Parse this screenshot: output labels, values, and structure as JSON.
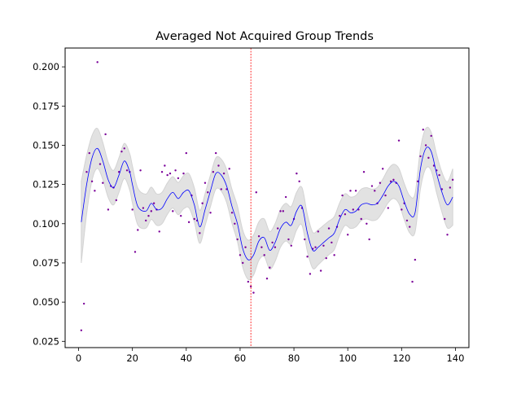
{
  "colors": {
    "line": "#0000ff",
    "points": "#7a0099",
    "band": "#d3d3d3",
    "vline": "#ff0000"
  },
  "chart_data": {
    "type": "scatter",
    "title": "Averaged Not Acquired Group Trends",
    "xlabel": "",
    "ylabel": "",
    "xlim": [
      -5,
      145
    ],
    "ylim": [
      0.021,
      0.212
    ],
    "xticks": [
      0,
      20,
      40,
      60,
      80,
      100,
      120,
      140
    ],
    "xtick_labels": [
      "0",
      "20",
      "40",
      "60",
      "80",
      "100",
      "120",
      "140"
    ],
    "yticks": [
      0.025,
      0.05,
      0.075,
      0.1,
      0.125,
      0.15,
      0.175,
      0.2
    ],
    "ytick_labels": [
      "0.025",
      "0.050",
      "0.075",
      "0.100",
      "0.125",
      "0.150",
      "0.175",
      "0.200"
    ],
    "grid": false,
    "legend": "none",
    "vertical_line_x": 64,
    "points": [
      [
        1,
        0.032
      ],
      [
        2,
        0.049
      ],
      [
        3,
        0.133
      ],
      [
        4,
        0.145
      ],
      [
        5,
        0.127
      ],
      [
        6,
        0.121
      ],
      [
        7,
        0.203
      ],
      [
        8,
        0.138
      ],
      [
        9,
        0.126
      ],
      [
        10,
        0.157
      ],
      [
        11,
        0.109
      ],
      [
        12,
        0.124
      ],
      [
        13,
        0.123
      ],
      [
        14,
        0.115
      ],
      [
        15,
        0.133
      ],
      [
        16,
        0.146
      ],
      [
        17,
        0.148
      ],
      [
        18,
        0.134
      ],
      [
        19,
        0.133
      ],
      [
        20,
        0.109
      ],
      [
        21,
        0.082
      ],
      [
        22,
        0.096
      ],
      [
        23,
        0.134
      ],
      [
        24,
        0.11
      ],
      [
        25,
        0.102
      ],
      [
        26,
        0.105
      ],
      [
        27,
        0.108
      ],
      [
        28,
        0.113
      ],
      [
        29,
        0.109
      ],
      [
        30,
        0.095
      ],
      [
        31,
        0.133
      ],
      [
        32,
        0.137
      ],
      [
        33,
        0.131
      ],
      [
        34,
        0.132
      ],
      [
        35,
        0.108
      ],
      [
        36,
        0.134
      ],
      [
        37,
        0.129
      ],
      [
        38,
        0.105
      ],
      [
        39,
        0.132
      ],
      [
        40,
        0.145
      ],
      [
        41,
        0.101
      ],
      [
        42,
        0.118
      ],
      [
        43,
        0.103
      ],
      [
        44,
        0.102
      ],
      [
        45,
        0.094
      ],
      [
        46,
        0.113
      ],
      [
        47,
        0.126
      ],
      [
        48,
        0.12
      ],
      [
        49,
        0.107
      ],
      [
        50,
        0.133
      ],
      [
        51,
        0.145
      ],
      [
        52,
        0.137
      ],
      [
        53,
        0.122
      ],
      [
        54,
        0.132
      ],
      [
        55,
        0.122
      ],
      [
        56,
        0.135
      ],
      [
        57,
        0.107
      ],
      [
        58,
        0.1
      ],
      [
        59,
        0.09
      ],
      [
        60,
        0.08
      ],
      [
        61,
        0.075
      ],
      [
        62,
        0.085
      ],
      [
        63,
        0.063
      ],
      [
        64,
        0.06
      ],
      [
        65,
        0.056
      ],
      [
        66,
        0.12
      ],
      [
        67,
        0.092
      ],
      [
        68,
        0.085
      ],
      [
        69,
        0.08
      ],
      [
        70,
        0.065
      ],
      [
        71,
        0.072
      ],
      [
        72,
        0.088
      ],
      [
        73,
        0.085
      ],
      [
        74,
        0.097
      ],
      [
        75,
        0.108
      ],
      [
        76,
        0.108
      ],
      [
        77,
        0.117
      ],
      [
        78,
        0.09
      ],
      [
        79,
        0.086
      ],
      [
        80,
        0.103
      ],
      [
        81,
        0.132
      ],
      [
        82,
        0.127
      ],
      [
        83,
        0.11
      ],
      [
        84,
        0.09
      ],
      [
        85,
        0.079
      ],
      [
        86,
        0.068
      ],
      [
        87,
        0.084
      ],
      [
        88,
        0.085
      ],
      [
        89,
        0.095
      ],
      [
        90,
        0.07
      ],
      [
        91,
        0.086
      ],
      [
        92,
        0.078
      ],
      [
        93,
        0.097
      ],
      [
        94,
        0.088
      ],
      [
        95,
        0.08
      ],
      [
        96,
        0.098
      ],
      [
        97,
        0.105
      ],
      [
        98,
        0.118
      ],
      [
        99,
        0.106
      ],
      [
        100,
        0.093
      ],
      [
        101,
        0.121
      ],
      [
        102,
        0.109
      ],
      [
        103,
        0.121
      ],
      [
        104,
        0.109
      ],
      [
        105,
        0.103
      ],
      [
        106,
        0.133
      ],
      [
        107,
        0.1
      ],
      [
        108,
        0.09
      ],
      [
        109,
        0.124
      ],
      [
        110,
        0.121
      ],
      [
        111,
        0.113
      ],
      [
        112,
        0.126
      ],
      [
        113,
        0.135
      ],
      [
        114,
        0.118
      ],
      [
        115,
        0.11
      ],
      [
        116,
        0.127
      ],
      [
        117,
        0.128
      ],
      [
        118,
        0.126
      ],
      [
        119,
        0.153
      ],
      [
        120,
        0.109
      ],
      [
        121,
        0.113
      ],
      [
        122,
        0.102
      ],
      [
        123,
        0.098
      ],
      [
        124,
        0.063
      ],
      [
        125,
        0.077
      ],
      [
        126,
        0.127
      ],
      [
        127,
        0.143
      ],
      [
        128,
        0.16
      ],
      [
        129,
        0.15
      ],
      [
        130,
        0.142
      ],
      [
        131,
        0.156
      ],
      [
        132,
        0.137
      ],
      [
        133,
        0.134
      ],
      [
        134,
        0.131
      ],
      [
        135,
        0.122
      ],
      [
        136,
        0.103
      ],
      [
        137,
        0.093
      ],
      [
        138,
        0.123
      ],
      [
        139,
        0.128
      ]
    ],
    "smooth_line": [
      [
        1,
        0.101
      ],
      [
        3,
        0.125
      ],
      [
        5,
        0.142
      ],
      [
        7,
        0.148
      ],
      [
        9,
        0.14
      ],
      [
        11,
        0.128
      ],
      [
        13,
        0.123
      ],
      [
        15,
        0.131
      ],
      [
        17,
        0.14
      ],
      [
        19,
        0.133
      ],
      [
        20,
        0.125
      ],
      [
        22,
        0.111
      ],
      [
        25,
        0.108
      ],
      [
        27,
        0.113
      ],
      [
        29,
        0.109
      ],
      [
        31,
        0.11
      ],
      [
        33,
        0.116
      ],
      [
        35,
        0.12
      ],
      [
        37,
        0.116
      ],
      [
        39,
        0.12
      ],
      [
        41,
        0.121
      ],
      [
        43,
        0.112
      ],
      [
        45,
        0.098
      ],
      [
        47,
        0.109
      ],
      [
        49,
        0.121
      ],
      [
        51,
        0.132
      ],
      [
        53,
        0.131
      ],
      [
        55,
        0.124
      ],
      [
        57,
        0.111
      ],
      [
        59,
        0.1
      ],
      [
        61,
        0.084
      ],
      [
        63,
        0.077
      ],
      [
        65,
        0.08
      ],
      [
        67,
        0.089
      ],
      [
        69,
        0.091
      ],
      [
        71,
        0.083
      ],
      [
        73,
        0.088
      ],
      [
        75,
        0.097
      ],
      [
        77,
        0.101
      ],
      [
        79,
        0.099
      ],
      [
        81,
        0.108
      ],
      [
        83,
        0.111
      ],
      [
        85,
        0.094
      ],
      [
        87,
        0.083
      ],
      [
        89,
        0.085
      ],
      [
        91,
        0.088
      ],
      [
        93,
        0.091
      ],
      [
        95,
        0.094
      ],
      [
        97,
        0.103
      ],
      [
        99,
        0.109
      ],
      [
        101,
        0.107
      ],
      [
        103,
        0.108
      ],
      [
        105,
        0.112
      ],
      [
        107,
        0.113
      ],
      [
        109,
        0.112
      ],
      [
        111,
        0.113
      ],
      [
        113,
        0.118
      ],
      [
        115,
        0.124
      ],
      [
        117,
        0.127
      ],
      [
        119,
        0.124
      ],
      [
        121,
        0.114
      ],
      [
        123,
        0.106
      ],
      [
        125,
        0.107
      ],
      [
        127,
        0.135
      ],
      [
        129,
        0.148
      ],
      [
        131,
        0.146
      ],
      [
        133,
        0.132
      ],
      [
        135,
        0.12
      ],
      [
        137,
        0.112
      ],
      [
        139,
        0.117
      ]
    ],
    "band_halfwidth": [
      [
        1,
        0.026
      ],
      [
        4,
        0.015
      ],
      [
        8,
        0.012
      ],
      [
        12,
        0.011
      ],
      [
        16,
        0.011
      ],
      [
        21,
        0.012
      ],
      [
        28,
        0.01
      ],
      [
        35,
        0.01
      ],
      [
        42,
        0.011
      ],
      [
        48,
        0.01
      ],
      [
        52,
        0.01
      ],
      [
        58,
        0.011
      ],
      [
        62,
        0.012
      ],
      [
        64,
        0.013
      ],
      [
        68,
        0.012
      ],
      [
        72,
        0.012
      ],
      [
        78,
        0.012
      ],
      [
        84,
        0.012
      ],
      [
        90,
        0.011
      ],
      [
        100,
        0.01
      ],
      [
        110,
        0.01
      ],
      [
        118,
        0.011
      ],
      [
        124,
        0.012
      ],
      [
        128,
        0.013
      ],
      [
        132,
        0.012
      ],
      [
        136,
        0.013
      ],
      [
        139,
        0.018
      ]
    ]
  }
}
